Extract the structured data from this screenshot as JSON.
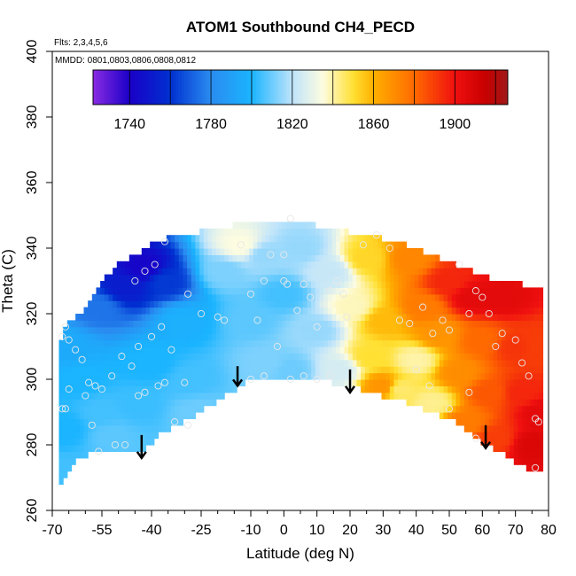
{
  "chart_data": {
    "type": "heatmap",
    "title": "ATOM1 Southbound CH4_PECD",
    "flights_label": "Flts: 2,3,4,5,6",
    "dates_label": "MMDD: 0801,0803,0806,0808,0812",
    "xlabel": "Latitude (deg N)",
    "ylabel": "Theta (C)",
    "xlim": [
      -70,
      80
    ],
    "ylim": [
      260,
      400
    ],
    "x_ticks": [
      -70,
      -55,
      -40,
      -25,
      -10,
      0,
      10,
      20,
      30,
      40,
      50,
      60,
      70,
      80
    ],
    "x_tick_labels": [
      "-70",
      "-55",
      "-40",
      "-25",
      "-10",
      "0",
      "10",
      "20",
      "30",
      "40",
      "50",
      "60",
      "70",
      "80"
    ],
    "x_minor_ticks": [
      -65,
      -60,
      -50,
      -45,
      -35,
      -30,
      -20,
      -15,
      -5,
      5,
      15,
      25,
      35,
      45,
      55,
      65,
      75
    ],
    "y_ticks": [
      260,
      280,
      300,
      320,
      340,
      360,
      380,
      400
    ],
    "y_tick_labels": [
      "260",
      "280",
      "300",
      "320",
      "340",
      "360",
      "380",
      "400"
    ],
    "colorbar": {
      "min": 1722,
      "max": 1926,
      "ticks": [
        1740,
        1780,
        1820,
        1860,
        1900
      ],
      "tick_labels": [
        "1740",
        "1780",
        "1820",
        "1860",
        "1900"
      ],
      "divider_values": [
        1740,
        1760,
        1780,
        1800,
        1820,
        1840,
        1860,
        1880,
        1900,
        1920
      ],
      "color_stops": [
        {
          "value": 1722,
          "color": "#8a2be2"
        },
        {
          "value": 1740,
          "color": "#1a00c8"
        },
        {
          "value": 1760,
          "color": "#0030d0"
        },
        {
          "value": 1780,
          "color": "#2a8cf0"
        },
        {
          "value": 1800,
          "color": "#1ab4ff"
        },
        {
          "value": 1820,
          "color": "#bfe4fb"
        },
        {
          "value": 1835,
          "color": "#fdfce0"
        },
        {
          "value": 1850,
          "color": "#ffe033"
        },
        {
          "value": 1860,
          "color": "#ffb000"
        },
        {
          "value": 1880,
          "color": "#ff6a00"
        },
        {
          "value": 1900,
          "color": "#f01010"
        },
        {
          "value": 1915,
          "color": "#c80000"
        },
        {
          "value": 1926,
          "color": "#a01818"
        }
      ]
    },
    "field_anchors": [
      {
        "lat": -42,
        "theta": 334,
        "value": 1742
      },
      {
        "lat": -48,
        "theta": 328,
        "value": 1752
      },
      {
        "lat": -36,
        "theta": 330,
        "value": 1762
      },
      {
        "lat": -56,
        "theta": 322,
        "value": 1775
      },
      {
        "lat": -66,
        "theta": 310,
        "value": 1795
      },
      {
        "lat": -62,
        "theta": 300,
        "value": 1800
      },
      {
        "lat": -55,
        "theta": 290,
        "value": 1805
      },
      {
        "lat": -52,
        "theta": 283,
        "value": 1808
      },
      {
        "lat": -66,
        "theta": 285,
        "value": 1800
      },
      {
        "lat": -67,
        "theta": 271,
        "value": 1805
      },
      {
        "lat": -40,
        "theta": 305,
        "value": 1800
      },
      {
        "lat": -44,
        "theta": 292,
        "value": 1804
      },
      {
        "lat": -30,
        "theta": 318,
        "value": 1798
      },
      {
        "lat": -28,
        "theta": 300,
        "value": 1805
      },
      {
        "lat": -26,
        "theta": 290,
        "value": 1810
      },
      {
        "lat": -18,
        "theta": 333,
        "value": 1812
      },
      {
        "lat": -13,
        "theta": 341,
        "value": 1835
      },
      {
        "lat": -10,
        "theta": 318,
        "value": 1808
      },
      {
        "lat": -6,
        "theta": 338,
        "value": 1815
      },
      {
        "lat": -5,
        "theta": 305,
        "value": 1812
      },
      {
        "lat": 0,
        "theta": 326,
        "value": 1805
      },
      {
        "lat": 2,
        "theta": 303,
        "value": 1810
      },
      {
        "lat": 5,
        "theta": 340,
        "value": 1815
      },
      {
        "lat": 10,
        "theta": 315,
        "value": 1815
      },
      {
        "lat": 14,
        "theta": 333,
        "value": 1822
      },
      {
        "lat": 17,
        "theta": 303,
        "value": 1825
      },
      {
        "lat": 21,
        "theta": 322,
        "value": 1838
      },
      {
        "lat": 25,
        "theta": 337,
        "value": 1852
      },
      {
        "lat": 26,
        "theta": 307,
        "value": 1850
      },
      {
        "lat": 30,
        "theta": 318,
        "value": 1858
      },
      {
        "lat": 30,
        "theta": 298,
        "value": 1868
      },
      {
        "lat": 35,
        "theta": 297,
        "value": 1845
      },
      {
        "lat": 38,
        "theta": 337,
        "value": 1872
      },
      {
        "lat": 40,
        "theta": 306,
        "value": 1840
      },
      {
        "lat": 42,
        "theta": 322,
        "value": 1875
      },
      {
        "lat": 45,
        "theta": 293,
        "value": 1842
      },
      {
        "lat": 47,
        "theta": 314,
        "value": 1868
      },
      {
        "lat": 50,
        "theta": 330,
        "value": 1895
      },
      {
        "lat": 53,
        "theta": 302,
        "value": 1870
      },
      {
        "lat": 55,
        "theta": 287,
        "value": 1875
      },
      {
        "lat": 57,
        "theta": 325,
        "value": 1905
      },
      {
        "lat": 60,
        "theta": 312,
        "value": 1880
      },
      {
        "lat": 62,
        "theta": 296,
        "value": 1884
      },
      {
        "lat": 64,
        "theta": 282,
        "value": 1890
      },
      {
        "lat": 66,
        "theta": 325,
        "value": 1905
      },
      {
        "lat": 70,
        "theta": 310,
        "value": 1892
      },
      {
        "lat": 72,
        "theta": 296,
        "value": 1895
      },
      {
        "lat": 75,
        "theta": 280,
        "value": 1908
      },
      {
        "lat": 77,
        "theta": 310,
        "value": 1890
      },
      {
        "lat": 78,
        "theta": 290,
        "value": 1905
      }
    ],
    "domain_top": [
      {
        "lat": -68,
        "theta": 310
      },
      {
        "lat": -66,
        "theta": 316
      },
      {
        "lat": -64,
        "theta": 318
      },
      {
        "lat": -61,
        "theta": 320
      },
      {
        "lat": -58,
        "theta": 325
      },
      {
        "lat": -55,
        "theta": 330
      },
      {
        "lat": -50,
        "theta": 335
      },
      {
        "lat": -45,
        "theta": 338
      },
      {
        "lat": -40,
        "theta": 341
      },
      {
        "lat": -35,
        "theta": 343
      },
      {
        "lat": -25,
        "theta": 345
      },
      {
        "lat": -15,
        "theta": 347
      },
      {
        "lat": -5,
        "theta": 349
      },
      {
        "lat": 5,
        "theta": 348
      },
      {
        "lat": 15,
        "theta": 346
      },
      {
        "lat": 25,
        "theta": 344
      },
      {
        "lat": 35,
        "theta": 342
      },
      {
        "lat": 45,
        "theta": 338
      },
      {
        "lat": 55,
        "theta": 334
      },
      {
        "lat": 65,
        "theta": 330
      },
      {
        "lat": 72,
        "theta": 329
      },
      {
        "lat": 76,
        "theta": 328
      },
      {
        "lat": 78,
        "theta": 327
      }
    ],
    "domain_bottom": [
      {
        "lat": -68,
        "theta": 268
      },
      {
        "lat": -65,
        "theta": 272
      },
      {
        "lat": -62,
        "theta": 276
      },
      {
        "lat": -55,
        "theta": 279
      },
      {
        "lat": -48,
        "theta": 278
      },
      {
        "lat": -43,
        "theta": 277
      },
      {
        "lat": -38,
        "theta": 283
      },
      {
        "lat": -28,
        "theta": 288
      },
      {
        "lat": -18,
        "theta": 295
      },
      {
        "lat": -10,
        "theta": 300
      },
      {
        "lat": 0,
        "theta": 300
      },
      {
        "lat": 10,
        "theta": 300
      },
      {
        "lat": 20,
        "theta": 298
      },
      {
        "lat": 30,
        "theta": 295
      },
      {
        "lat": 40,
        "theta": 292
      },
      {
        "lat": 50,
        "theta": 288
      },
      {
        "lat": 60,
        "theta": 281
      },
      {
        "lat": 70,
        "theta": 275
      },
      {
        "lat": 76,
        "theta": 271
      },
      {
        "lat": 78,
        "theta": 272
      }
    ],
    "observations": [
      {
        "lat": -42,
        "theta": 333
      },
      {
        "lat": -39,
        "theta": 335
      },
      {
        "lat": -45,
        "theta": 330
      },
      {
        "lat": -36,
        "theta": 342
      },
      {
        "lat": -29,
        "theta": 326
      },
      {
        "lat": -25,
        "theta": 320
      },
      {
        "lat": -37,
        "theta": 316
      },
      {
        "lat": -40,
        "theta": 313
      },
      {
        "lat": -34,
        "theta": 309
      },
      {
        "lat": -44,
        "theta": 310
      },
      {
        "lat": -46,
        "theta": 304
      },
      {
        "lat": -49,
        "theta": 307
      },
      {
        "lat": -52,
        "theta": 301
      },
      {
        "lat": -55,
        "theta": 297
      },
      {
        "lat": -57,
        "theta": 298
      },
      {
        "lat": -59,
        "theta": 299
      },
      {
        "lat": -61,
        "theta": 306
      },
      {
        "lat": -63,
        "theta": 309
      },
      {
        "lat": -65,
        "theta": 312
      },
      {
        "lat": -66,
        "theta": 316
      },
      {
        "lat": -67,
        "theta": 313
      },
      {
        "lat": -65,
        "theta": 297
      },
      {
        "lat": -66,
        "theta": 291
      },
      {
        "lat": -67,
        "theta": 291
      },
      {
        "lat": -60,
        "theta": 295
      },
      {
        "lat": -58,
        "theta": 286
      },
      {
        "lat": -56,
        "theta": 278
      },
      {
        "lat": -51,
        "theta": 280
      },
      {
        "lat": -48,
        "theta": 280
      },
      {
        "lat": -44,
        "theta": 295
      },
      {
        "lat": -42,
        "theta": 296
      },
      {
        "lat": -38,
        "theta": 298
      },
      {
        "lat": -36,
        "theta": 299
      },
      {
        "lat": -33,
        "theta": 287
      },
      {
        "lat": -29,
        "theta": 286
      },
      {
        "lat": -30,
        "theta": 299
      },
      {
        "lat": -20,
        "theta": 319
      },
      {
        "lat": -18,
        "theta": 318
      },
      {
        "lat": -13,
        "theta": 341
      },
      {
        "lat": -10,
        "theta": 326
      },
      {
        "lat": -8,
        "theta": 318
      },
      {
        "lat": -6,
        "theta": 330
      },
      {
        "lat": -4,
        "theta": 338
      },
      {
        "lat": -2,
        "theta": 310
      },
      {
        "lat": 0,
        "theta": 338
      },
      {
        "lat": 0,
        "theta": 330
      },
      {
        "lat": 1,
        "theta": 329
      },
      {
        "lat": 2,
        "theta": 349
      },
      {
        "lat": 4,
        "theta": 321
      },
      {
        "lat": 6,
        "theta": 329
      },
      {
        "lat": 8,
        "theta": 325
      },
      {
        "lat": 10,
        "theta": 316
      },
      {
        "lat": 12,
        "theta": 323
      },
      {
        "lat": 14,
        "theta": 327
      },
      {
        "lat": 16,
        "theta": 330
      },
      {
        "lat": 18,
        "theta": 326
      },
      {
        "lat": 19,
        "theta": 319
      },
      {
        "lat": 14,
        "theta": 301
      },
      {
        "lat": 10,
        "theta": 300
      },
      {
        "lat": 6,
        "theta": 301
      },
      {
        "lat": 2,
        "theta": 300
      },
      {
        "lat": -6,
        "theta": 301
      },
      {
        "lat": -10,
        "theta": 300
      },
      {
        "lat": 24,
        "theta": 341
      },
      {
        "lat": 28,
        "theta": 344
      },
      {
        "lat": 32,
        "theta": 340
      },
      {
        "lat": 35,
        "theta": 318
      },
      {
        "lat": 38,
        "theta": 317
      },
      {
        "lat": 42,
        "theta": 322
      },
      {
        "lat": 45,
        "theta": 314
      },
      {
        "lat": 48,
        "theta": 318
      },
      {
        "lat": 50,
        "theta": 315
      },
      {
        "lat": 53,
        "theta": 335
      },
      {
        "lat": 56,
        "theta": 320
      },
      {
        "lat": 58,
        "theta": 327
      },
      {
        "lat": 60,
        "theta": 325
      },
      {
        "lat": 62,
        "theta": 320
      },
      {
        "lat": 64,
        "theta": 310
      },
      {
        "lat": 66,
        "theta": 314
      },
      {
        "lat": 70,
        "theta": 312
      },
      {
        "lat": 72,
        "theta": 305
      },
      {
        "lat": 74,
        "theta": 301
      },
      {
        "lat": 76,
        "theta": 288
      },
      {
        "lat": 77,
        "theta": 287
      },
      {
        "lat": 76,
        "theta": 273
      },
      {
        "lat": 40,
        "theta": 303
      },
      {
        "lat": 44,
        "theta": 298
      },
      {
        "lat": 50,
        "theta": 291
      },
      {
        "lat": 56,
        "theta": 296
      },
      {
        "lat": 58,
        "theta": 282
      }
    ],
    "annotations": [
      {
        "kind": "arrow-down",
        "lat": -43,
        "theta_from": 283,
        "theta_to": 276
      },
      {
        "kind": "arrow-down",
        "lat": -14,
        "theta_from": 304,
        "theta_to": 298
      },
      {
        "kind": "arrow-down",
        "lat": 20,
        "theta_from": 303,
        "theta_to": 296
      },
      {
        "kind": "arrow-down",
        "lat": 61,
        "theta_from": 286,
        "theta_to": 279
      }
    ]
  }
}
